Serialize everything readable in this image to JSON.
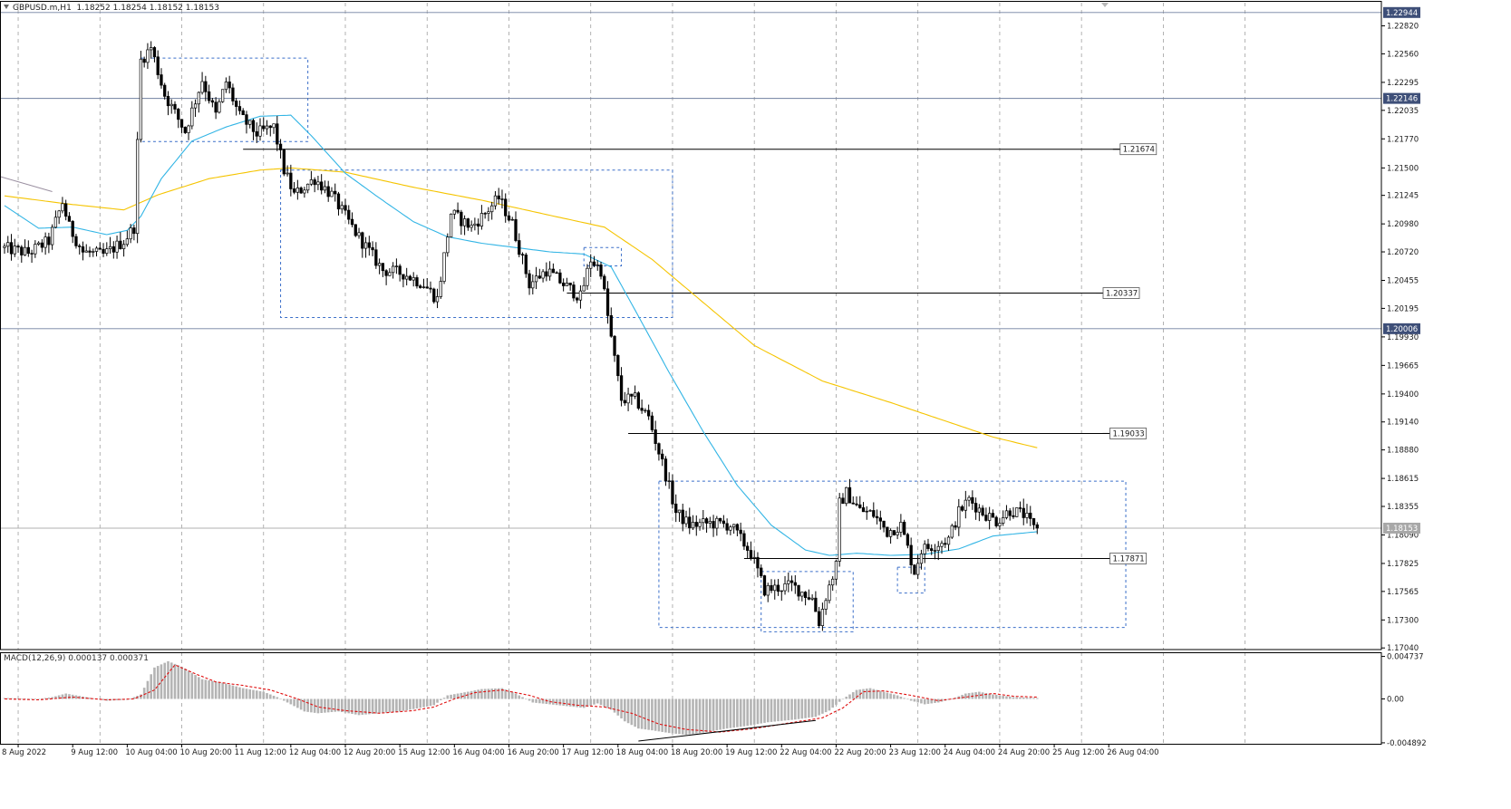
{
  "header": {
    "symbol": "GBPUSD.m,H1",
    "ohlc": "1.18252 1.18254 1.18152 1.18153"
  },
  "macd": {
    "label": "MACD(12,26,9) 0.000137 0.000371"
  },
  "colors": {
    "candle": "#000000",
    "ema_fast": "#33b5e5",
    "ema_slow": "#f5c400",
    "box": "#3b6fc9",
    "macd_hist": "#b4b4b4",
    "macd_signal": "#e01010",
    "grid": "#a0a0a0",
    "hline": "#7080a0"
  },
  "chart_data": {
    "type": "candlestick",
    "price_axis": {
      "ticks": [
        "1.22820",
        "1.22560",
        "1.22295",
        "1.22035",
        "1.21770",
        "1.21500",
        "1.21245",
        "1.20980",
        "1.20720",
        "1.20455",
        "1.20195",
        "1.19930",
        "1.19665",
        "1.19400",
        "1.19140",
        "1.18880",
        "1.18615",
        "1.18355",
        "1.18090",
        "1.17825",
        "1.17565",
        "1.17300",
        "1.17040"
      ],
      "range": [
        1.17025,
        1.23035
      ]
    },
    "macd_axis": {
      "ticks": [
        "0.004737",
        "0.00",
        "-0.004892"
      ],
      "range": [
        -0.005,
        0.0052
      ]
    },
    "time_axis": [
      "8 Aug 2022",
      "9 Aug 12:00",
      "10 Aug 04:00",
      "10 Aug 20:00",
      "11 Aug 12:00",
      "12 Aug 04:00",
      "12 Aug 20:00",
      "15 Aug 12:00",
      "16 Aug 04:00",
      "16 Aug 20:00",
      "17 Aug 12:00",
      "18 Aug 04:00",
      "18 Aug 20:00",
      "19 Aug 12:00",
      "22 Aug 04:00",
      "22 Aug 20:00",
      "23 Aug 12:00",
      "24 Aug 04:00",
      "24 Aug 20:00",
      "25 Aug 12:00",
      "26 Aug 04:00"
    ],
    "price_labels": [
      {
        "text": "1.22944",
        "value": 1.22944,
        "kind": "axis-box"
      },
      {
        "text": "1.22146",
        "value": 1.22146,
        "kind": "axis-box"
      },
      {
        "text": "1.20006",
        "value": 1.20006,
        "kind": "axis-box"
      },
      {
        "text": "1.18153",
        "value": 1.18153,
        "kind": "axis-box"
      }
    ],
    "level_labels": [
      {
        "text": "1.21674",
        "value": 1.21674
      },
      {
        "text": "1.20337",
        "value": 1.20337
      },
      {
        "text": "1.19033",
        "value": 1.19033
      },
      {
        "text": "1.17871",
        "value": 1.17871
      }
    ],
    "horizontal_lines": [
      1.22944,
      1.22146,
      1.20006,
      1.18153
    ],
    "trend_levels": [
      {
        "value": 1.21674,
        "from_bar": 70,
        "to_bar": 330
      },
      {
        "value": 1.20337,
        "from_bar": 165,
        "to_bar": 325
      },
      {
        "value": 1.19033,
        "from_bar": 183,
        "to_bar": 327
      },
      {
        "value": 1.17871,
        "from_bar": 217,
        "to_bar": 327
      }
    ],
    "boxes": [
      {
        "bar_from": 40,
        "bar_to": 89,
        "high": 1.2252,
        "low": 1.21745
      },
      {
        "bar_from": 81,
        "bar_to": 196,
        "high": 1.2148,
        "low": 1.2011
      },
      {
        "bar_from": 170,
        "bar_to": 181,
        "high": 1.2076,
        "low": 1.2059
      },
      {
        "bar_from": 192,
        "bar_to": 329,
        "high": 1.1859,
        "low": 1.1723
      },
      {
        "bar_from": 222,
        "bar_to": 249,
        "high": 1.1775,
        "low": 1.1719
      },
      {
        "bar_from": 262,
        "bar_to": 270,
        "high": 1.1779,
        "low": 1.1755
      }
    ],
    "anchors": [
      [
        0,
        1.2076
      ],
      [
        8,
        1.2071
      ],
      [
        14,
        1.2082
      ],
      [
        18,
        1.2118
      ],
      [
        20,
        1.2095
      ],
      [
        24,
        1.2072
      ],
      [
        30,
        1.2069
      ],
      [
        36,
        1.2082
      ],
      [
        39,
        1.2095
      ],
      [
        41,
        1.225
      ],
      [
        44,
        1.2262
      ],
      [
        48,
        1.2218
      ],
      [
        54,
        1.2184
      ],
      [
        59,
        1.2232
      ],
      [
        63,
        1.2199
      ],
      [
        66,
        1.223
      ],
      [
        70,
        1.2198
      ],
      [
        75,
        1.2182
      ],
      [
        80,
        1.2188
      ],
      [
        83,
        1.2148
      ],
      [
        86,
        1.2125
      ],
      [
        92,
        1.214
      ],
      [
        97,
        1.2125
      ],
      [
        104,
        1.209
      ],
      [
        112,
        1.2055
      ],
      [
        118,
        1.2052
      ],
      [
        124,
        1.2042
      ],
      [
        128,
        1.2028
      ],
      [
        132,
        1.2108
      ],
      [
        138,
        1.2095
      ],
      [
        142,
        1.2108
      ],
      [
        146,
        1.2122
      ],
      [
        150,
        1.2098
      ],
      [
        155,
        1.2042
      ],
      [
        160,
        1.2055
      ],
      [
        165,
        1.2042
      ],
      [
        170,
        1.203
      ],
      [
        173,
        1.2065
      ],
      [
        176,
        1.2055
      ],
      [
        178,
        1.2012
      ],
      [
        180,
        1.1972
      ],
      [
        182,
        1.1935
      ],
      [
        186,
        1.1935
      ],
      [
        190,
        1.1918
      ],
      [
        195,
        1.1865
      ],
      [
        198,
        1.183
      ],
      [
        202,
        1.1818
      ],
      [
        208,
        1.182
      ],
      [
        214,
        1.1818
      ],
      [
        220,
        1.1792
      ],
      [
        224,
        1.1758
      ],
      [
        232,
        1.1762
      ],
      [
        238,
        1.175
      ],
      [
        240,
        1.1728
      ],
      [
        242,
        1.1752
      ],
      [
        245,
        1.178
      ],
      [
        246,
        1.1838
      ],
      [
        248,
        1.1848
      ],
      [
        252,
        1.1832
      ],
      [
        256,
        1.1828
      ],
      [
        260,
        1.1812
      ],
      [
        264,
        1.1818
      ],
      [
        268,
        1.1775
      ],
      [
        270,
        1.1795
      ],
      [
        274,
        1.18
      ],
      [
        278,
        1.1805
      ],
      [
        281,
        1.183
      ],
      [
        284,
        1.1842
      ],
      [
        288,
        1.183
      ],
      [
        292,
        1.1822
      ],
      [
        296,
        1.1832
      ],
      [
        300,
        1.1828
      ],
      [
        303,
        1.1815
      ]
    ],
    "ema_fast": [
      [
        0,
        1.2115
      ],
      [
        10,
        1.2094
      ],
      [
        20,
        1.2095
      ],
      [
        30,
        1.2088
      ],
      [
        36,
        1.2092
      ],
      [
        40,
        1.2105
      ],
      [
        46,
        1.214
      ],
      [
        55,
        1.2175
      ],
      [
        65,
        1.2188
      ],
      [
        75,
        1.2198
      ],
      [
        84,
        1.2199
      ],
      [
        90,
        1.218
      ],
      [
        100,
        1.2145
      ],
      [
        110,
        1.2122
      ],
      [
        120,
        1.21
      ],
      [
        130,
        1.2086
      ],
      [
        140,
        1.208
      ],
      [
        150,
        1.2076
      ],
      [
        160,
        1.2072
      ],
      [
        170,
        1.207
      ],
      [
        178,
        1.2058
      ],
      [
        185,
        1.2018
      ],
      [
        195,
        1.196
      ],
      [
        205,
        1.1905
      ],
      [
        215,
        1.1855
      ],
      [
        225,
        1.1818
      ],
      [
        235,
        1.1795
      ],
      [
        242,
        1.179
      ],
      [
        250,
        1.1792
      ],
      [
        260,
        1.179
      ],
      [
        270,
        1.1791
      ],
      [
        280,
        1.1796
      ],
      [
        290,
        1.1808
      ],
      [
        303,
        1.1812
      ]
    ],
    "ema_slow": [
      [
        0,
        1.2124
      ],
      [
        20,
        1.2116
      ],
      [
        35,
        1.2111
      ],
      [
        45,
        1.2125
      ],
      [
        60,
        1.214
      ],
      [
        75,
        1.2148
      ],
      [
        84,
        1.215
      ],
      [
        100,
        1.2146
      ],
      [
        120,
        1.2132
      ],
      [
        140,
        1.212
      ],
      [
        160,
        1.2106
      ],
      [
        176,
        1.2095
      ],
      [
        190,
        1.2065
      ],
      [
        205,
        1.2025
      ],
      [
        220,
        1.1985
      ],
      [
        240,
        1.1952
      ],
      [
        260,
        1.1932
      ],
      [
        275,
        1.1916
      ],
      [
        290,
        1.19
      ],
      [
        303,
        1.189
      ]
    ],
    "macd_hist": [
      [
        0,
        0.0001
      ],
      [
        10,
        0.0
      ],
      [
        14,
        0.0002
      ],
      [
        18,
        0.0006
      ],
      [
        24,
        0.0002
      ],
      [
        30,
        -0.0002
      ],
      [
        36,
        -0.0001
      ],
      [
        40,
        0.0005
      ],
      [
        44,
        0.0035
      ],
      [
        48,
        0.0042
      ],
      [
        52,
        0.0036
      ],
      [
        58,
        0.0022
      ],
      [
        64,
        0.0018
      ],
      [
        70,
        0.0012
      ],
      [
        76,
        0.0008
      ],
      [
        80,
        0.0002
      ],
      [
        84,
        -0.0006
      ],
      [
        88,
        -0.0014
      ],
      [
        92,
        -0.0016
      ],
      [
        98,
        -0.0014
      ],
      [
        104,
        -0.0018
      ],
      [
        110,
        -0.0016
      ],
      [
        116,
        -0.0014
      ],
      [
        122,
        -0.001
      ],
      [
        126,
        -0.0007
      ],
      [
        130,
        0.0004
      ],
      [
        136,
        0.0008
      ],
      [
        140,
        0.0011
      ],
      [
        146,
        0.0012
      ],
      [
        150,
        0.0006
      ],
      [
        155,
        -0.0004
      ],
      [
        160,
        -0.0006
      ],
      [
        165,
        -0.0008
      ],
      [
        170,
        -0.001
      ],
      [
        174,
        -0.0005
      ],
      [
        178,
        -0.0012
      ],
      [
        182,
        -0.0025
      ],
      [
        186,
        -0.0033
      ],
      [
        190,
        -0.0035
      ],
      [
        195,
        -0.0038
      ],
      [
        200,
        -0.004
      ],
      [
        206,
        -0.0037
      ],
      [
        212,
        -0.0033
      ],
      [
        218,
        -0.003
      ],
      [
        224,
        -0.0026
      ],
      [
        232,
        -0.0023
      ],
      [
        238,
        -0.002
      ],
      [
        242,
        -0.0013
      ],
      [
        246,
        0.0
      ],
      [
        250,
        0.001
      ],
      [
        254,
        0.0012
      ],
      [
        258,
        0.0008
      ],
      [
        262,
        0.0004
      ],
      [
        266,
        -0.0002
      ],
      [
        270,
        -0.0006
      ],
      [
        274,
        -0.0004
      ],
      [
        278,
        0.0
      ],
      [
        282,
        0.0006
      ],
      [
        286,
        0.0008
      ],
      [
        290,
        0.0005
      ],
      [
        296,
        0.0002
      ],
      [
        303,
        0.0001
      ]
    ],
    "macd_signal": [
      [
        0,
        0.0
      ],
      [
        10,
        -0.0001
      ],
      [
        20,
        0.0002
      ],
      [
        30,
        -0.0001
      ],
      [
        38,
        0.0
      ],
      [
        44,
        0.001
      ],
      [
        50,
        0.0038
      ],
      [
        56,
        0.0028
      ],
      [
        62,
        0.0019
      ],
      [
        70,
        0.0015
      ],
      [
        78,
        0.001
      ],
      [
        86,
        0.0
      ],
      [
        92,
        -0.0009
      ],
      [
        100,
        -0.0013
      ],
      [
        110,
        -0.0016
      ],
      [
        120,
        -0.0013
      ],
      [
        126,
        -0.0009
      ],
      [
        132,
        0.0
      ],
      [
        138,
        0.0007
      ],
      [
        146,
        0.001
      ],
      [
        154,
        0.0004
      ],
      [
        160,
        -0.0003
      ],
      [
        168,
        -0.0007
      ],
      [
        176,
        -0.0009
      ],
      [
        184,
        -0.0016
      ],
      [
        192,
        -0.0028
      ],
      [
        200,
        -0.0034
      ],
      [
        210,
        -0.0037
      ],
      [
        220,
        -0.0033
      ],
      [
        230,
        -0.0027
      ],
      [
        240,
        -0.0021
      ],
      [
        246,
        -0.001
      ],
      [
        252,
        0.0008
      ],
      [
        258,
        0.0009
      ],
      [
        266,
        0.0004
      ],
      [
        274,
        -0.0002
      ],
      [
        282,
        0.0002
      ],
      [
        290,
        0.0006
      ],
      [
        296,
        0.0003
      ],
      [
        303,
        0.0002
      ]
    ],
    "macd_trendline": [
      [
        186,
        -0.0047
      ],
      [
        238,
        -0.0024
      ]
    ]
  }
}
